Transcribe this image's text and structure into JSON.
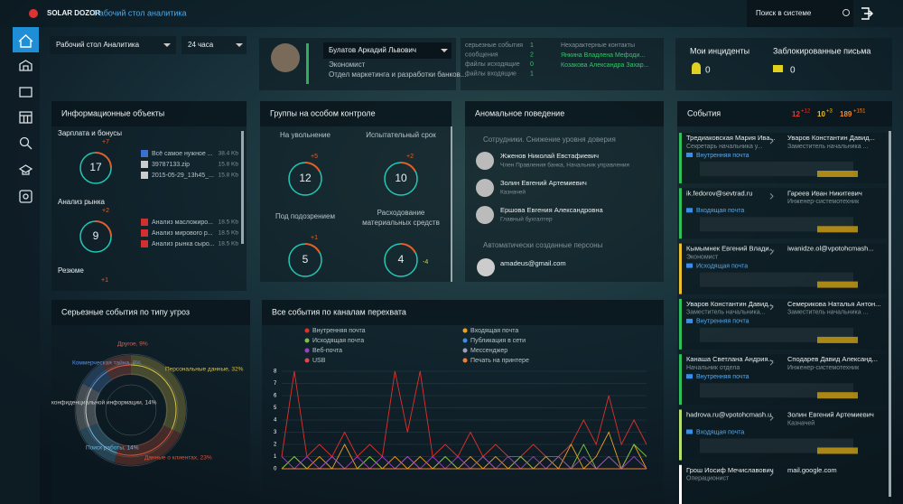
{
  "header": {
    "brand": "SOLAR DOZOR",
    "workspace": "Рабочий стол аналитика",
    "search": "Поиск в системе"
  },
  "filters": {
    "desktop": "Рабочий стол Аналитика",
    "period": "24 часа"
  },
  "profile": {
    "name": "Булатов Аркадий Львович",
    "position": "Экономист",
    "department": "Отдел маркетинга и разработки банков...",
    "stats": [
      {
        "label": "серьезные события",
        "value": 1
      },
      {
        "label": "сообщения",
        "value": 2
      },
      {
        "label": "файлы исходящие",
        "value": 0
      },
      {
        "label": "файлы входящие",
        "value": 1
      }
    ],
    "contacts_title": "Нехарактерные контакты",
    "contacts": [
      "Янкина Владлена Мефоди...",
      "Козакова Александра Захар..."
    ]
  },
  "summary": {
    "incidents": {
      "label": "Мои инциденты",
      "value": 0
    },
    "blocked": {
      "label": "Заблокированные письма",
      "value": 0
    }
  },
  "info_objects": {
    "title": "Информационные объекты",
    "groups": [
      {
        "name": "Зарплата и бонусы",
        "count": 17,
        "delta": "+7",
        "files": [
          {
            "name": "Всё самое нужное ...",
            "size": "38.4 Kb"
          },
          {
            "name": "39787133.zip",
            "size": "15.8 Kb"
          },
          {
            "name": "2015-05-29_13h45_...",
            "size": "15.8 Kb"
          }
        ]
      },
      {
        "name": "Анализ рынка",
        "count": 9,
        "delta": "+2",
        "files": [
          {
            "name": "Анализ масложиро...",
            "size": "18.5 Kb"
          },
          {
            "name": "Анализ мирового р...",
            "size": "18.5 Kb"
          },
          {
            "name": "Анализ рынка сыро...",
            "size": "18.5 Kb"
          }
        ]
      },
      {
        "name": "Резюме",
        "delta": "+1",
        "files": []
      }
    ]
  },
  "groups": {
    "title": "Группы на особом контроле",
    "items": [
      {
        "name": "На увольнение",
        "count": 12,
        "delta": "+5"
      },
      {
        "name": "Испытательный срок",
        "count": 10,
        "delta": "+2"
      },
      {
        "name": "Под подозрением",
        "count": 5,
        "delta": "+1"
      },
      {
        "name": "Расходование материальных средств",
        "count": 4,
        "delta": "-4"
      }
    ]
  },
  "anomalies": {
    "title": "Аномальное поведение",
    "employees_title": "Сотрудники. Снижение уровня доверия",
    "employees": [
      {
        "name": "Жженов Николай Евстафиевич",
        "role": "Член Правления банка, Начальник управления"
      },
      {
        "name": "Золин Евгений Артемиевич",
        "role": "Казначей"
      },
      {
        "name": "Ершова Евгения Александровна",
        "role": "Главный бухгалтер"
      }
    ],
    "auto_title": "Автоматически созданные персоны",
    "auto": [
      "amadeus@gmail.com"
    ]
  },
  "events": {
    "title": "События",
    "counters": [
      {
        "value": 12,
        "delta": "+12"
      },
      {
        "value": 10,
        "delta": "+3"
      },
      {
        "value": 189,
        "delta": "+151"
      }
    ],
    "items": [
      {
        "from": "Тредиаковская Мария Ива...",
        "from_role": "Секретарь начальника у...",
        "to": "Уваров Константин Давид...",
        "to_role": "Заместитель начальника ...",
        "channel": "Внутренняя почта"
      },
      {
        "from": "ik.fedorov@sevtrad.ru",
        "to": "Гареев Иван Никитевич",
        "to_role": "Инженер-системотехник",
        "channel": "Входящая почта"
      },
      {
        "from": "Кымымнек Евгений Влади...",
        "from_role": "Экономист",
        "to": "iwanidze.ol@vpotohcmash...",
        "channel": "Исходящая почта"
      },
      {
        "from": "Уваров Константин Давид...",
        "from_role": "Заместитель начальника...",
        "to": "Семерикова Наталья Антон...",
        "to_role": "Заместитель начальника ...",
        "channel": "Внутренняя почта"
      },
      {
        "from": "Канаша Светлана Андрия...",
        "from_role": "Начальник отдела",
        "to": "Сподарев Давид Александ...",
        "to_role": "Инженер-системотехник",
        "channel": "Внутренняя почта"
      },
      {
        "from": "hadrova.ru@vpotohcmash.u",
        "to": "Золин Евгений Артемиевич",
        "to_role": "Казначей",
        "channel": "Входящая почта"
      },
      {
        "from": "Грош Иосиф Мечиславович",
        "from_role": "Операционист",
        "to": "mail.google.com"
      }
    ]
  },
  "chart_data": [
    {
      "type": "pie",
      "title": "Серьезные события по типу угроз",
      "categories": [
        "Персональные данные",
        "Данные о клиентах",
        "Поиск работы",
        "конфиденциальной информации",
        "Коммерческая тайна",
        "Другое"
      ],
      "values": [
        32,
        23,
        14,
        14,
        8,
        9
      ],
      "value_labels": [
        "Персональные данные, 32%",
        "Данные о клиентах, 23%",
        "Поиск работы, 14%",
        "конфиденциальной информации, 14%",
        "Коммерческая тайна, 8%",
        "Другое, 9%"
      ],
      "colors": [
        "#d8c248",
        "#d8553a",
        "#6fb6e0",
        "#d0d0d0",
        "#5b8fd8",
        "#d8604a"
      ]
    },
    {
      "type": "line",
      "title": "Все события по каналам перехвата",
      "ylim": [
        0,
        8
      ],
      "yticks": [
        0,
        1,
        2,
        3,
        4,
        5,
        6,
        7,
        8
      ],
      "grid": true,
      "series": [
        {
          "name": "Внутренняя почта",
          "color": "#e0302a",
          "values": [
            1,
            8,
            1,
            2,
            1,
            3,
            1,
            2,
            1,
            8,
            3,
            8,
            1,
            2,
            1,
            3,
            1,
            2,
            1,
            1,
            2,
            1,
            1,
            2,
            4,
            2,
            6,
            2,
            4,
            2
          ]
        },
        {
          "name": "Входящая почта",
          "color": "#f0a020",
          "values": [
            0,
            1,
            0,
            1,
            0,
            2,
            0,
            1,
            0,
            1,
            0,
            1,
            0,
            1,
            0,
            1,
            0,
            1,
            0,
            1,
            0,
            1,
            0,
            2,
            0,
            1,
            3,
            0,
            2,
            0
          ]
        },
        {
          "name": "Исходящая почта",
          "color": "#7bc043",
          "values": [
            0,
            1,
            0,
            0,
            1,
            0,
            0,
            1,
            0,
            0,
            1,
            0,
            0,
            1,
            0,
            0,
            1,
            0,
            0,
            1,
            0,
            0,
            1,
            0,
            2,
            0,
            1,
            0,
            2,
            1
          ]
        },
        {
          "name": "Публикация в сети",
          "color": "#3a8ee6",
          "values": [
            0,
            0,
            0,
            0,
            0,
            0,
            0,
            0,
            0,
            0,
            0,
            0,
            0,
            0,
            0,
            0,
            0,
            0,
            0,
            0,
            0,
            0,
            0,
            0,
            0,
            0,
            0,
            0,
            0,
            0
          ]
        },
        {
          "name": "Веб-почта",
          "color": "#a040c0",
          "values": [
            1,
            0,
            1,
            0,
            1,
            0,
            1,
            0,
            1,
            0,
            1,
            0,
            1,
            0,
            1,
            0,
            1,
            0,
            1,
            0,
            1,
            0,
            1,
            0,
            1,
            0,
            1,
            0,
            1,
            0
          ]
        },
        {
          "name": "Мессенджер",
          "color": "#9aa0b8",
          "values": [
            0,
            0,
            0,
            0,
            0,
            0,
            0,
            0,
            0,
            0,
            0,
            0,
            0,
            0,
            0,
            0,
            0,
            0,
            0,
            0,
            0,
            0,
            0,
            0,
            0,
            0,
            0,
            0,
            0,
            0
          ]
        },
        {
          "name": "USB",
          "color": "#e04848",
          "values": [
            0,
            0,
            0,
            0,
            0,
            0,
            0,
            0,
            0,
            0,
            0,
            0,
            0,
            0,
            0,
            0,
            0,
            0,
            0,
            0,
            0,
            0,
            0,
            0,
            0,
            0,
            0,
            0,
            0,
            0
          ]
        },
        {
          "name": "Печать на принтере",
          "color": "#f08030",
          "values": [
            0,
            0,
            0,
            0,
            0,
            0,
            0,
            0,
            0,
            0,
            0,
            0,
            0,
            0,
            0,
            0,
            0,
            0,
            0,
            0,
            0,
            0,
            0,
            0,
            0,
            0,
            0,
            0,
            0,
            0
          ]
        }
      ]
    }
  ]
}
